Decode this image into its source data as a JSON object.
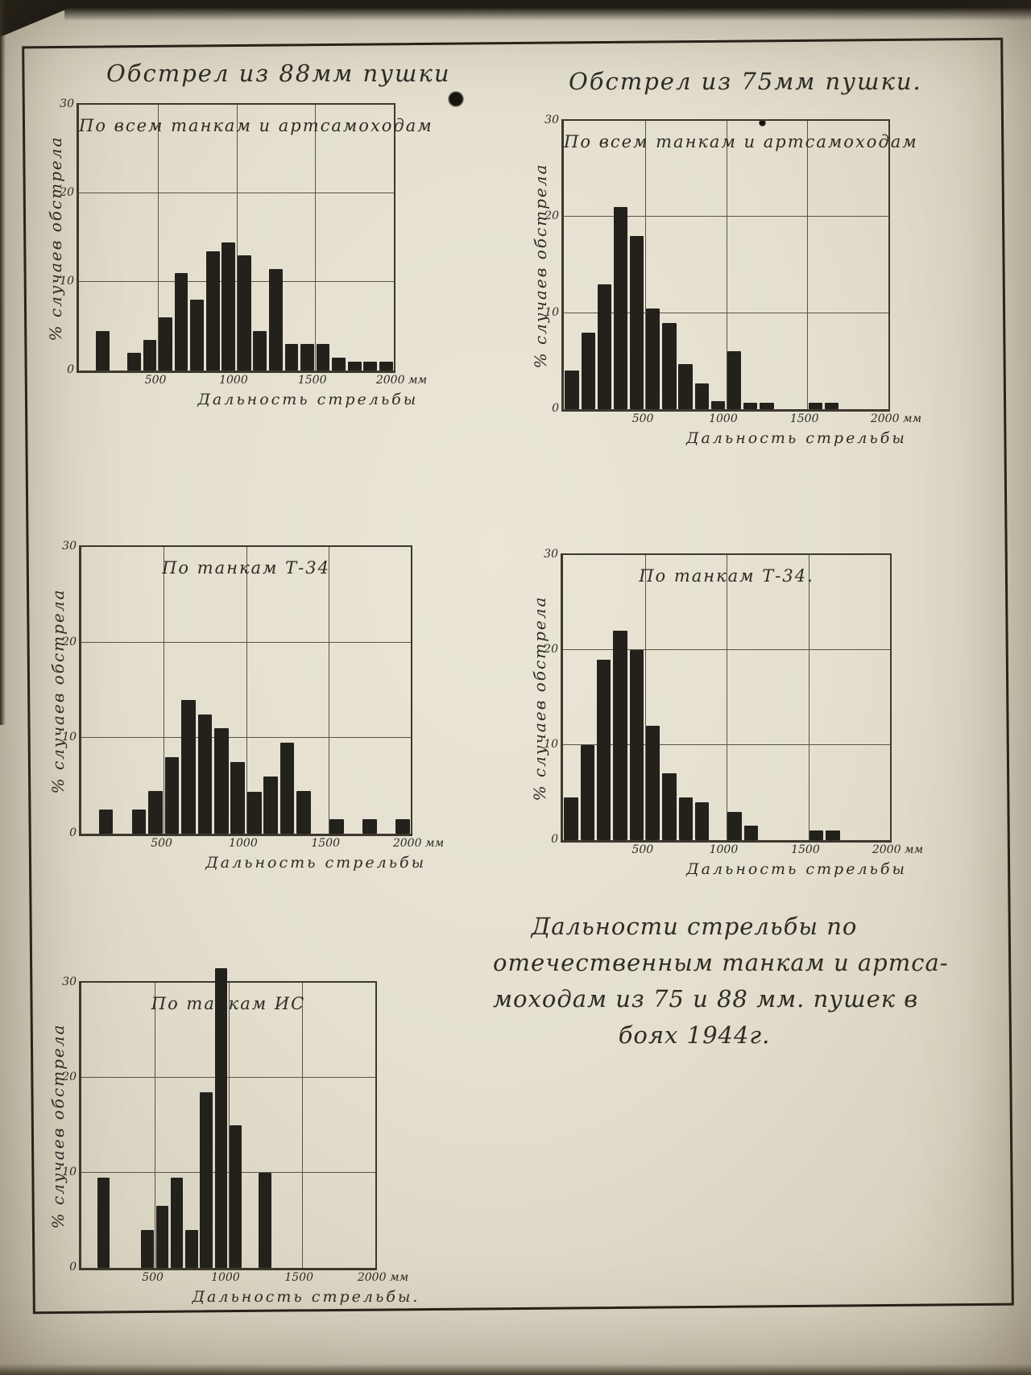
{
  "page": {
    "column_titles": {
      "left": "Обстрел из 88мм пушки",
      "right": "Обстрел из 75мм пушки."
    },
    "caption_lines": [
      "Дальности стрельбы по",
      "отечественным танкам и артса-",
      "моходам из 75 и 88 мм. пушек в",
      "боях  1944г."
    ]
  },
  "axes": {
    "y_label": "% случаев обстрела",
    "y_tick_values": [
      30,
      20,
      10,
      0
    ],
    "y_tick_labels": [
      "30",
      "20",
      "10",
      "0"
    ],
    "y_gridlines": [
      10,
      20
    ],
    "x_tick_positions": [
      500,
      1000,
      1500,
      2000
    ],
    "x_tick_labels": [
      "500",
      "1000",
      "1500",
      "2000 мм"
    ],
    "x_gridlines_m": [
      500,
      1000,
      1500
    ]
  },
  "colors": {
    "paper": "#e6e1d2",
    "ink": "#2e2b24",
    "bar": "#23211c",
    "grid": "#5a5442"
  },
  "chart_data": [
    {
      "type": "bar",
      "gun": "88 мм",
      "title": "По всем танкам и артсамоходам",
      "x_label": "Дальность стрельбы",
      "ylabel": "% случаев обстрела",
      "xlim": [
        0,
        2000
      ],
      "ylim": [
        0,
        30
      ],
      "bin_start_m": 100,
      "bin_width_m": 100,
      "values": [
        4.5,
        0,
        2,
        3.5,
        6,
        11,
        8,
        13.5,
        14.5,
        13,
        4.5,
        11.5,
        3,
        3,
        3,
        1.5,
        1,
        1,
        1
      ]
    },
    {
      "type": "bar",
      "gun": "75 мм",
      "title": "По всем танкам и артсамоходам",
      "x_label": "Дальность стрельбы",
      "ylabel": "% случаев обстрела",
      "xlim": [
        0,
        2000
      ],
      "ylim": [
        0,
        30
      ],
      "bin_start_m": 0,
      "bin_width_m": 100,
      "values": [
        4,
        8,
        13,
        21,
        18,
        10.5,
        9,
        4.7,
        2.7,
        0.8,
        6,
        0.7,
        0.7,
        0,
        0,
        0.7,
        0.7
      ]
    },
    {
      "type": "bar",
      "gun": "88 мм",
      "title": "По танкам Т-34",
      "x_label": "Дальность стрельбы",
      "ylabel": "% случаев обстрела",
      "xlim": [
        0,
        2000
      ],
      "ylim": [
        0,
        30
      ],
      "bin_start_m": 100,
      "bin_width_m": 100,
      "values": [
        2.5,
        0,
        2.5,
        4.5,
        8,
        14,
        12.5,
        11,
        7.5,
        4.4,
        6,
        9.5,
        4.5,
        0,
        1.5,
        0,
        1.5,
        0,
        1.5
      ]
    },
    {
      "type": "bar",
      "gun": "75 мм",
      "title": "По танкам Т-34.",
      "x_label": "Дальность стрельбы",
      "ylabel": "% случаев обстрела",
      "xlim": [
        0,
        2000
      ],
      "ylim": [
        0,
        30
      ],
      "bin_start_m": 0,
      "bin_width_m": 100,
      "values": [
        4.5,
        10,
        19,
        22,
        20,
        12,
        7,
        4.5,
        4,
        0,
        3,
        1.5,
        0,
        0,
        0,
        1,
        1
      ]
    },
    {
      "type": "bar",
      "gun": "88 мм",
      "title": "По танкам ИС",
      "x_label": "Дальность стрельбы.",
      "ylabel": "% случаев обстрела",
      "xlim": [
        0,
        2000
      ],
      "ylim": [
        0,
        30
      ],
      "bin_start_m": 100,
      "bin_width_m": 100,
      "values": [
        9.5,
        0,
        0,
        4,
        6.5,
        9.5,
        4,
        18.5,
        31.5,
        15,
        0,
        10
      ]
    }
  ]
}
